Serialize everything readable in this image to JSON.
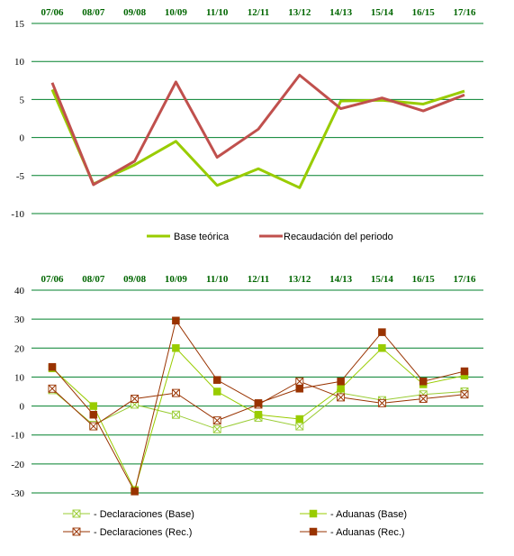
{
  "colors": {
    "grid": "#00802b",
    "category_text": "#006600",
    "base": "#99cc00",
    "recaudacion": "#c0504d",
    "declaraciones_base": "#99cc33",
    "aduanas_base": "#99cc00",
    "declaraciones_rec": "#993300",
    "aduanas_rec": "#993300"
  },
  "chart_data": [
    {
      "type": "line",
      "categories": [
        "07/06",
        "08/07",
        "09/08",
        "10/09",
        "11/10",
        "12/11",
        "13/12",
        "14/13",
        "15/14",
        "16/15",
        "17/16"
      ],
      "ylim": [
        -10,
        15
      ],
      "yticks": [
        "15",
        "10",
        "5",
        "0",
        "-5",
        "-10"
      ],
      "grid": true,
      "legend_position": "bottom",
      "series": [
        {
          "name": "Base teórica",
          "values": [
            6.3,
            -6.1,
            -3.6,
            -0.5,
            -6.3,
            -4.1,
            -6.6,
            4.8,
            4.9,
            4.4,
            6.1
          ]
        },
        {
          "name": "Recaudación del periodo",
          "values": [
            7.2,
            -6.2,
            -3.1,
            7.3,
            -2.6,
            1.1,
            8.2,
            3.8,
            5.2,
            3.5,
            5.6
          ]
        }
      ]
    },
    {
      "type": "line",
      "categories": [
        "07/06",
        "08/07",
        "09/08",
        "10/09",
        "11/10",
        "12/11",
        "13/12",
        "14/13",
        "15/14",
        "16/15",
        "17/16"
      ],
      "ylim": [
        -30,
        40
      ],
      "yticks": [
        "40",
        "30",
        "20",
        "10",
        "0",
        "-10",
        "-20",
        "-30"
      ],
      "grid": true,
      "legend_position": "bottom",
      "series": [
        {
          "name": "- Declaraciones (Base)",
          "values": [
            5.5,
            -6.5,
            0.5,
            -3.0,
            -8.0,
            -4.0,
            -7.0,
            4.5,
            2.0,
            4.0,
            5.0
          ]
        },
        {
          "name": "- Aduanas (Base)",
          "values": [
            13.0,
            0.0,
            -29.0,
            20.0,
            5.0,
            -3.0,
            -4.5,
            6.0,
            20.0,
            7.5,
            10.5
          ]
        },
        {
          "name": "- Declaraciones (Rec.)",
          "values": [
            6.0,
            -7.0,
            2.5,
            4.5,
            -5.0,
            0.5,
            8.5,
            3.0,
            1.0,
            2.5,
            4.0
          ]
        },
        {
          "name": "- Aduanas (Rec.)",
          "values": [
            13.5,
            -3.0,
            -29.5,
            29.5,
            9.0,
            1.0,
            6.0,
            8.5,
            25.5,
            8.5,
            12.0
          ]
        }
      ]
    }
  ]
}
